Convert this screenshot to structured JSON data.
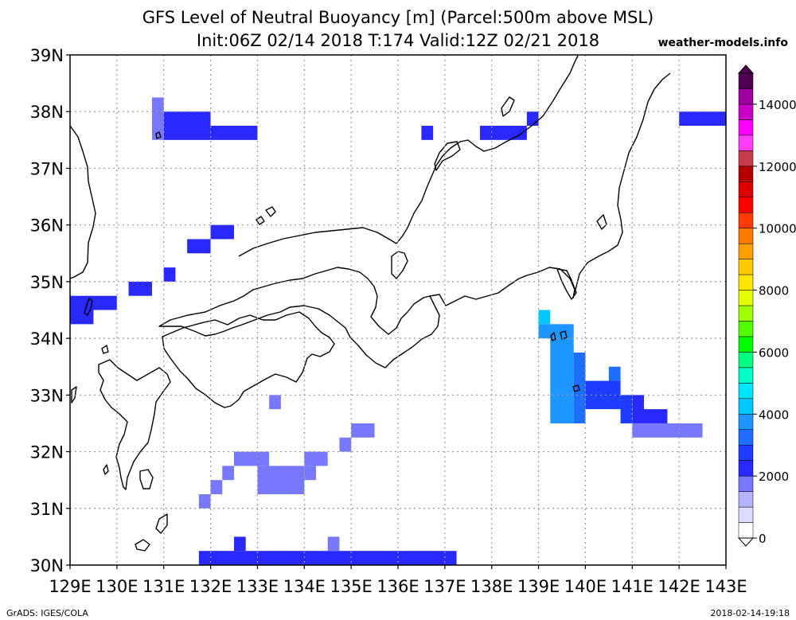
{
  "chart_data": {
    "type": "heatmap",
    "title": "GFS Level of Neutral Buoyancy [m] (Parcel:500m above MSL)",
    "subtitle": "Init:06Z 02/14 2018 T:174 Valid:12Z 02/21 2018",
    "source": "weather-models.info",
    "footer_left": "GrADS: IGES/COLA",
    "footer_right": "2018-02-14-19:18",
    "x_ticks": [
      "129E",
      "130E",
      "131E",
      "132E",
      "133E",
      "134E",
      "135E",
      "136E",
      "137E",
      "138E",
      "139E",
      "140E",
      "141E",
      "142E",
      "143E"
    ],
    "y_ticks": [
      "30N",
      "31N",
      "32N",
      "33N",
      "34N",
      "35N",
      "36N",
      "37N",
      "38N",
      "39N"
    ],
    "xlim": [
      129,
      143
    ],
    "ylim": [
      30,
      39
    ],
    "grid": true,
    "colorbar": {
      "min": 0,
      "max": 15000,
      "labels": [
        "0",
        "2000",
        "4000",
        "6000",
        "8000",
        "10000",
        "12000",
        "14000"
      ],
      "label_values": [
        0,
        2000,
        4000,
        6000,
        8000,
        10000,
        12000,
        14000
      ],
      "bounds": [
        0,
        500,
        1000,
        1500,
        2000,
        2500,
        3000,
        3500,
        4000,
        4500,
        5000,
        5500,
        6000,
        6500,
        7000,
        7500,
        8000,
        8500,
        9000,
        9500,
        10000,
        10500,
        11000,
        11500,
        12000,
        12500,
        13000,
        13500,
        14000,
        14500,
        15000
      ],
      "colors": [
        "#ffffff",
        "#dcdcff",
        "#b4b4ff",
        "#7878ff",
        "#2828ff",
        "#1e3cff",
        "#1e6eff",
        "#1e96ff",
        "#00c8ff",
        "#00e6ff",
        "#00ffc8",
        "#00ff82",
        "#00ff00",
        "#50ff00",
        "#a0ff00",
        "#e6ff00",
        "#ffe600",
        "#ffc800",
        "#ffa000",
        "#ff7800",
        "#ff3c00",
        "#ff0000",
        "#dc0000",
        "#b40000",
        "#c83c50",
        "#ff3cff",
        "#ff00ff",
        "#c800c8",
        "#a000a0",
        "#500050"
      ]
    },
    "cells": [
      {
        "lon": [
          130.75,
          131.0
        ],
        "lat": [
          37.5,
          38.25
        ],
        "value": 1900
      },
      {
        "lon": [
          131.0,
          132.0
        ],
        "lat": [
          37.5,
          38.0
        ],
        "value": 2100
      },
      {
        "lon": [
          132.0,
          133.0
        ],
        "lat": [
          37.5,
          37.75
        ],
        "value": 2000
      },
      {
        "lon": [
          136.5,
          136.75
        ],
        "lat": [
          37.5,
          37.75
        ],
        "value": 2000
      },
      {
        "lon": [
          137.75,
          138.75
        ],
        "lat": [
          37.5,
          37.75
        ],
        "value": 2000
      },
      {
        "lon": [
          138.75,
          139.0
        ],
        "lat": [
          37.75,
          38.0
        ],
        "value": 2000
      },
      {
        "lon": [
          142.0,
          143.0
        ],
        "lat": [
          37.75,
          38.0
        ],
        "value": 2000
      },
      {
        "lon": [
          132.0,
          132.5
        ],
        "lat": [
          35.75,
          36.0
        ],
        "value": 2000
      },
      {
        "lon": [
          131.5,
          132.0
        ],
        "lat": [
          35.5,
          35.75
        ],
        "value": 2000
      },
      {
        "lon": [
          131.0,
          131.25
        ],
        "lat": [
          35.0,
          35.25
        ],
        "value": 2000
      },
      {
        "lon": [
          130.25,
          130.75
        ],
        "lat": [
          34.75,
          35.0
        ],
        "value": 2000
      },
      {
        "lon": [
          129.0,
          130.0
        ],
        "lat": [
          34.5,
          34.75
        ],
        "value": 2000
      },
      {
        "lon": [
          129.0,
          129.5
        ],
        "lat": [
          34.25,
          34.5
        ],
        "value": 2000
      },
      {
        "lon": [
          139.0,
          139.25
        ],
        "lat": [
          34.25,
          34.5
        ],
        "value": 4000
      },
      {
        "lon": [
          139.0,
          139.75
        ],
        "lat": [
          34.0,
          34.25
        ],
        "value": 3500
      },
      {
        "lon": [
          139.25,
          139.75
        ],
        "lat": [
          32.5,
          34.0
        ],
        "value": 3500
      },
      {
        "lon": [
          139.75,
          140.0
        ],
        "lat": [
          32.5,
          33.75
        ],
        "value": 3000
      },
      {
        "lon": [
          140.0,
          140.75
        ],
        "lat": [
          32.75,
          33.25
        ],
        "value": 2500
      },
      {
        "lon": [
          140.5,
          140.75
        ],
        "lat": [
          33.25,
          33.5
        ],
        "value": 3000
      },
      {
        "lon": [
          140.75,
          141.0
        ],
        "lat": [
          32.5,
          33.0
        ],
        "value": 2500
      },
      {
        "lon": [
          141.0,
          141.25
        ],
        "lat": [
          32.5,
          33.0
        ],
        "value": 2000
      },
      {
        "lon": [
          141.25,
          141.75
        ],
        "lat": [
          32.5,
          32.75
        ],
        "value": 2000
      },
      {
        "lon": [
          141.0,
          142.5
        ],
        "lat": [
          32.25,
          32.5
        ],
        "value": 1800
      },
      {
        "lon": [
          133.25,
          133.5
        ],
        "lat": [
          32.75,
          33.0
        ],
        "value": 1700
      },
      {
        "lon": [
          135.0,
          135.5
        ],
        "lat": [
          32.25,
          32.5
        ],
        "value": 1700
      },
      {
        "lon": [
          134.75,
          135.0
        ],
        "lat": [
          32.0,
          32.25
        ],
        "value": 1700
      },
      {
        "lon": [
          132.5,
          133.25
        ],
        "lat": [
          31.75,
          32.0
        ],
        "value": 1700
      },
      {
        "lon": [
          134.0,
          134.5
        ],
        "lat": [
          31.75,
          32.0
        ],
        "value": 1700
      },
      {
        "lon": [
          132.25,
          132.5
        ],
        "lat": [
          31.5,
          31.75
        ],
        "value": 1900
      },
      {
        "lon": [
          133.0,
          134.0
        ],
        "lat": [
          31.25,
          31.75
        ],
        "value": 1500
      },
      {
        "lon": [
          134.0,
          134.25
        ],
        "lat": [
          31.5,
          31.75
        ],
        "value": 1700
      },
      {
        "lon": [
          132.0,
          132.25
        ],
        "lat": [
          31.25,
          31.5
        ],
        "value": 1900
      },
      {
        "lon": [
          131.75,
          132.0
        ],
        "lat": [
          31.0,
          31.25
        ],
        "value": 1900
      },
      {
        "lon": [
          131.75,
          137.25
        ],
        "lat": [
          30.0,
          30.25
        ],
        "value": 2100
      },
      {
        "lon": [
          132.5,
          132.75
        ],
        "lat": [
          30.25,
          30.5
        ],
        "value": 2000
      },
      {
        "lon": [
          134.5,
          134.75
        ],
        "lat": [
          30.25,
          30.5
        ],
        "value": 1900
      }
    ]
  }
}
